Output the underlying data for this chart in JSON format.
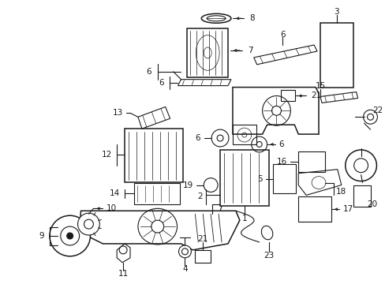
{
  "bg_color": "#ffffff",
  "line_color": "#1a1a1a",
  "figsize": [
    4.89,
    3.6
  ],
  "dpi": 100,
  "font_size": 7.5
}
